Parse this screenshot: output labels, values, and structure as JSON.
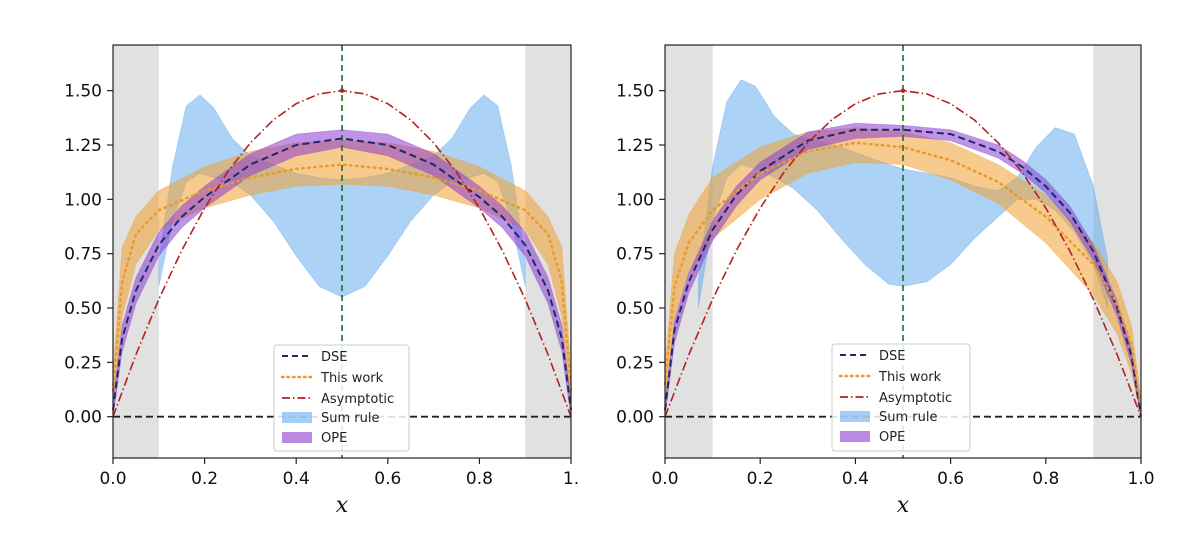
{
  "chart_data": [
    {
      "type": "line",
      "xlabel": "x",
      "ylabel": "",
      "xlim": [
        0.0,
        1.0
      ],
      "ylim": [
        -0.19,
        1.71
      ],
      "xticks": [
        0.0,
        0.2,
        0.4,
        0.6,
        0.8,
        1.0
      ],
      "xtick_labels": [
        "0.0",
        "0.2",
        "0.4",
        "0.6",
        "0.8",
        "1."
      ],
      "yticks": [
        0.0,
        0.25,
        0.5,
        0.75,
        1.0,
        1.25,
        1.5
      ],
      "ytick_labels": [
        "0.00",
        "0.25",
        "0.50",
        "0.75",
        "1.00",
        "1.25",
        "1.50"
      ],
      "shaded_regions": [
        [
          0.0,
          0.1
        ],
        [
          0.9,
          1.0
        ]
      ],
      "vertical_line_x": 0.5,
      "horizontal_line_y": 0.0,
      "legend": [
        "DSE",
        "This work",
        "Asymptotic",
        "Sum rule",
        "OPE"
      ],
      "legend_position": "lower-center",
      "series": [
        {
          "name": "DSE",
          "style": "dashed",
          "color": "#1f2a6b",
          "x": [
            0,
            0.02,
            0.05,
            0.1,
            0.15,
            0.2,
            0.3,
            0.4,
            0.5,
            0.6,
            0.7,
            0.8,
            0.85,
            0.9,
            0.95,
            0.98,
            1.0
          ],
          "y": [
            0.03,
            0.36,
            0.58,
            0.79,
            0.92,
            1.01,
            1.16,
            1.25,
            1.28,
            1.25,
            1.16,
            1.01,
            0.92,
            0.79,
            0.58,
            0.36,
            0.03
          ]
        },
        {
          "name": "This work",
          "style": "dotted",
          "color": "#e89a2c",
          "x": [
            0,
            0.02,
            0.05,
            0.1,
            0.2,
            0.3,
            0.4,
            0.5,
            0.6,
            0.7,
            0.8,
            0.9,
            0.95,
            0.98,
            1.0
          ],
          "y": [
            0.12,
            0.62,
            0.84,
            0.95,
            1.04,
            1.1,
            1.14,
            1.16,
            1.14,
            1.1,
            1.04,
            0.95,
            0.84,
            0.62,
            0.12
          ]
        },
        {
          "name": "Asymptotic",
          "style": "dashdot",
          "color": "#b22222",
          "x": [
            0,
            0.05,
            0.1,
            0.15,
            0.2,
            0.25,
            0.3,
            0.35,
            0.4,
            0.45,
            0.5,
            0.55,
            0.6,
            0.65,
            0.7,
            0.75,
            0.8,
            0.85,
            0.9,
            0.95,
            1.0
          ],
          "y": [
            0,
            0.285,
            0.54,
            0.765,
            0.96,
            1.125,
            1.26,
            1.365,
            1.44,
            1.485,
            1.5,
            1.485,
            1.44,
            1.365,
            1.26,
            1.125,
            0.96,
            0.765,
            0.54,
            0.285,
            0
          ]
        }
      ],
      "bands": [
        {
          "name": "Sum rule",
          "color": "#5aa6ee",
          "x": [
            0.1,
            0.13,
            0.16,
            0.19,
            0.22,
            0.26,
            0.3,
            0.35,
            0.4,
            0.45,
            0.5,
            0.55,
            0.6,
            0.65,
            0.7,
            0.74,
            0.78,
            0.81,
            0.84,
            0.87,
            0.9
          ],
          "upper": [
            0.72,
            1.15,
            1.43,
            1.48,
            1.42,
            1.28,
            1.2,
            1.16,
            1.12,
            1.1,
            1.09,
            1.1,
            1.12,
            1.16,
            1.2,
            1.28,
            1.42,
            1.48,
            1.43,
            1.15,
            0.72
          ],
          "lower": [
            0.6,
            0.9,
            1.08,
            1.12,
            1.1,
            1.08,
            1.02,
            0.9,
            0.74,
            0.6,
            0.55,
            0.6,
            0.74,
            0.9,
            1.02,
            1.08,
            1.1,
            1.12,
            1.08,
            0.9,
            0.6
          ]
        },
        {
          "name": "This work band",
          "color": "#f0a030",
          "x": [
            0,
            0.02,
            0.05,
            0.1,
            0.2,
            0.3,
            0.4,
            0.5,
            0.6,
            0.7,
            0.8,
            0.9,
            0.95,
            0.98,
            1.0
          ],
          "upper": [
            0.2,
            0.78,
            0.92,
            1.04,
            1.15,
            1.22,
            1.26,
            1.27,
            1.26,
            1.22,
            1.15,
            1.04,
            0.92,
            0.78,
            0.2
          ],
          "lower": [
            0.04,
            0.46,
            0.7,
            0.86,
            0.96,
            1.02,
            1.06,
            1.07,
            1.06,
            1.02,
            0.96,
            0.86,
            0.7,
            0.46,
            0.04
          ]
        },
        {
          "name": "OPE",
          "color": "#8c3ccf",
          "x": [
            0,
            0.02,
            0.05,
            0.1,
            0.15,
            0.2,
            0.3,
            0.4,
            0.5,
            0.6,
            0.7,
            0.8,
            0.85,
            0.9,
            0.95,
            0.98,
            1.0
          ],
          "upper": [
            0.07,
            0.42,
            0.64,
            0.85,
            0.97,
            1.06,
            1.21,
            1.3,
            1.32,
            1.3,
            1.21,
            1.06,
            0.97,
            0.85,
            0.64,
            0.42,
            0.07
          ],
          "lower": [
            0.0,
            0.3,
            0.52,
            0.74,
            0.87,
            0.96,
            1.11,
            1.2,
            1.24,
            1.2,
            1.11,
            0.96,
            0.87,
            0.74,
            0.52,
            0.3,
            0.0
          ]
        }
      ]
    },
    {
      "type": "line",
      "xlabel": "x",
      "ylabel": "",
      "xlim": [
        0.0,
        1.0
      ],
      "ylim": [
        -0.19,
        1.71
      ],
      "xticks": [
        0.0,
        0.2,
        0.4,
        0.6,
        0.8,
        1.0
      ],
      "xtick_labels": [
        "0.0",
        "0.2",
        "0.4",
        "0.6",
        "0.8",
        "1.0"
      ],
      "yticks": [
        0.0,
        0.25,
        0.5,
        0.75,
        1.0,
        1.25,
        1.5
      ],
      "ytick_labels": [
        "0.00",
        "0.25",
        "0.50",
        "0.75",
        "1.00",
        "1.25",
        "1.50"
      ],
      "shaded_regions": [
        [
          0.0,
          0.1
        ],
        [
          0.9,
          1.0
        ]
      ],
      "vertical_line_x": 0.5,
      "horizontal_line_y": 0.0,
      "legend": [
        "DSE",
        "This work",
        "Asymptotic",
        "Sum rule",
        "OPE"
      ],
      "legend_position": "lower-center",
      "series": [
        {
          "name": "DSE",
          "style": "dashed",
          "color": "#1f2a6b",
          "x": [
            0,
            0.02,
            0.05,
            0.1,
            0.15,
            0.2,
            0.3,
            0.4,
            0.5,
            0.6,
            0.7,
            0.75,
            0.8,
            0.85,
            0.9,
            0.95,
            0.98,
            1.0
          ],
          "y": [
            0.03,
            0.4,
            0.62,
            0.86,
            1.02,
            1.13,
            1.27,
            1.32,
            1.32,
            1.3,
            1.22,
            1.15,
            1.06,
            0.94,
            0.76,
            0.5,
            0.28,
            0.0
          ]
        },
        {
          "name": "This work",
          "style": "dotted",
          "color": "#e89a2c",
          "x": [
            0,
            0.02,
            0.05,
            0.1,
            0.2,
            0.3,
            0.4,
            0.5,
            0.6,
            0.7,
            0.8,
            0.9,
            0.95,
            0.98,
            1.0
          ],
          "y": [
            0.15,
            0.6,
            0.8,
            0.95,
            1.12,
            1.22,
            1.26,
            1.24,
            1.18,
            1.08,
            0.92,
            0.7,
            0.52,
            0.33,
            0.05
          ]
        },
        {
          "name": "Asymptotic",
          "style": "dashdot",
          "color": "#b22222",
          "x": [
            0,
            0.05,
            0.1,
            0.15,
            0.2,
            0.25,
            0.3,
            0.35,
            0.4,
            0.45,
            0.5,
            0.55,
            0.6,
            0.65,
            0.7,
            0.75,
            0.8,
            0.85,
            0.9,
            0.95,
            1.0
          ],
          "y": [
            0,
            0.285,
            0.54,
            0.765,
            0.96,
            1.125,
            1.26,
            1.365,
            1.44,
            1.485,
            1.5,
            1.485,
            1.44,
            1.365,
            1.26,
            1.125,
            0.96,
            0.765,
            0.54,
            0.285,
            0
          ]
        }
      ],
      "bands": [
        {
          "name": "Sum rule",
          "color": "#5aa6ee",
          "x": [
            0.07,
            0.1,
            0.13,
            0.16,
            0.19,
            0.23,
            0.27,
            0.32,
            0.37,
            0.42,
            0.47,
            0.5,
            0.55,
            0.6,
            0.65,
            0.7,
            0.74,
            0.78,
            0.82,
            0.86,
            0.9,
            0.93
          ],
          "upper": [
            0.62,
            1.15,
            1.45,
            1.55,
            1.52,
            1.38,
            1.3,
            1.27,
            1.24,
            1.2,
            1.16,
            1.14,
            1.12,
            1.1,
            1.06,
            1.04,
            1.1,
            1.24,
            1.33,
            1.3,
            1.06,
            0.72
          ],
          "lower": [
            0.5,
            0.9,
            1.1,
            1.16,
            1.14,
            1.1,
            1.05,
            0.95,
            0.82,
            0.7,
            0.61,
            0.6,
            0.62,
            0.7,
            0.82,
            0.92,
            1.0,
            1.0,
            0.95,
            0.85,
            0.7,
            0.5
          ]
        },
        {
          "name": "This work band",
          "color": "#f0a030",
          "x": [
            0,
            0.02,
            0.05,
            0.1,
            0.2,
            0.3,
            0.4,
            0.5,
            0.6,
            0.7,
            0.8,
            0.9,
            0.95,
            0.98,
            1.0
          ],
          "upper": [
            0.22,
            0.75,
            0.93,
            1.1,
            1.24,
            1.31,
            1.33,
            1.31,
            1.26,
            1.16,
            1.02,
            0.8,
            0.62,
            0.42,
            0.08
          ],
          "lower": [
            0.06,
            0.45,
            0.66,
            0.82,
            1.0,
            1.12,
            1.17,
            1.16,
            1.09,
            0.98,
            0.8,
            0.56,
            0.38,
            0.2,
            0.0
          ]
        },
        {
          "name": "OPE",
          "color": "#8c3ccf",
          "x": [
            0,
            0.02,
            0.05,
            0.1,
            0.15,
            0.2,
            0.3,
            0.4,
            0.5,
            0.6,
            0.7,
            0.75,
            0.8,
            0.85,
            0.9,
            0.95,
            0.98,
            1.0
          ],
          "upper": [
            0.06,
            0.44,
            0.66,
            0.9,
            1.06,
            1.17,
            1.31,
            1.35,
            1.34,
            1.32,
            1.25,
            1.18,
            1.09,
            0.97,
            0.79,
            0.53,
            0.31,
            0.03
          ],
          "lower": [
            0.0,
            0.34,
            0.57,
            0.81,
            0.97,
            1.09,
            1.23,
            1.28,
            1.29,
            1.27,
            1.19,
            1.12,
            1.03,
            0.9,
            0.72,
            0.46,
            0.24,
            0.0
          ]
        }
      ]
    }
  ]
}
